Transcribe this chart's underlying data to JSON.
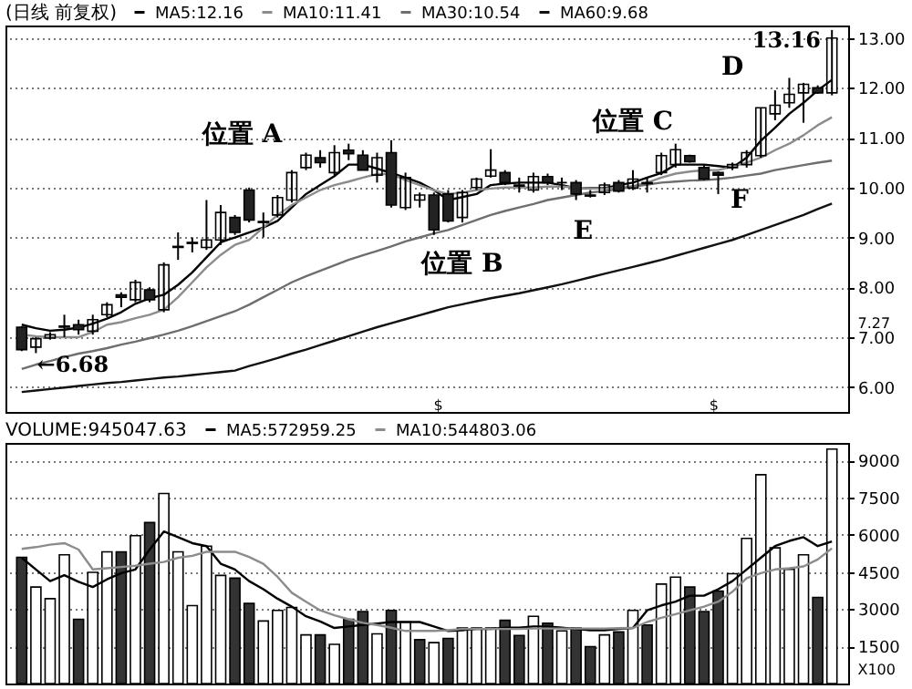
{
  "chart_data": [
    {
      "type": "candlestick",
      "title": "(日线 前复权)",
      "legend": "top left",
      "grid": "y",
      "categories": [
        null,
        null,
        null,
        null,
        null,
        null,
        null,
        null,
        null,
        null,
        null,
        null,
        null,
        null,
        null,
        null,
        null,
        null,
        null,
        null,
        null,
        null,
        null,
        null,
        null,
        null,
        null,
        null,
        null,
        null,
        null,
        null,
        null,
        null,
        null,
        null,
        null,
        null,
        null,
        null,
        null,
        null,
        null,
        null,
        null,
        null,
        null,
        null,
        null,
        null,
        null,
        null,
        null,
        null,
        null,
        null,
        null,
        null
      ],
      "ohlc": [
        [
          7.2,
          7.22,
          6.72,
          6.75
        ],
        [
          6.8,
          7.0,
          6.68,
          6.97
        ],
        [
          6.98,
          7.1,
          6.95,
          7.05
        ],
        [
          7.2,
          7.45,
          7.0,
          7.22
        ],
        [
          7.25,
          7.35,
          7.05,
          7.15
        ],
        [
          7.12,
          7.45,
          7.05,
          7.35
        ],
        [
          7.45,
          7.7,
          7.4,
          7.65
        ],
        [
          7.85,
          7.9,
          7.6,
          7.8
        ],
        [
          7.75,
          8.15,
          7.7,
          8.1
        ],
        [
          7.95,
          8.0,
          7.7,
          7.75
        ],
        [
          7.55,
          8.5,
          7.5,
          8.45
        ],
        [
          8.8,
          9.1,
          8.55,
          8.82
        ],
        [
          8.9,
          9.0,
          8.7,
          8.88
        ],
        [
          8.8,
          9.75,
          8.75,
          8.95
        ],
        [
          8.95,
          9.65,
          8.85,
          9.5
        ],
        [
          9.4,
          9.45,
          9.05,
          9.1
        ],
        [
          9.95,
          10.0,
          9.3,
          9.35
        ],
        [
          9.3,
          9.5,
          9.0,
          9.32
        ],
        [
          9.45,
          9.85,
          9.4,
          9.8
        ],
        [
          9.75,
          10.35,
          9.7,
          10.3
        ],
        [
          10.4,
          10.7,
          10.35,
          10.65
        ],
        [
          10.6,
          10.75,
          10.4,
          10.5
        ],
        [
          10.3,
          10.85,
          10.25,
          10.7
        ],
        [
          10.75,
          10.88,
          10.55,
          10.68
        ],
        [
          10.65,
          10.75,
          10.35,
          10.35
        ],
        [
          10.25,
          10.7,
          10.1,
          10.6
        ],
        [
          10.7,
          10.95,
          9.6,
          9.65
        ],
        [
          9.6,
          10.3,
          9.55,
          10.2
        ],
        [
          9.75,
          9.9,
          9.6,
          9.85
        ],
        [
          9.85,
          9.9,
          9.05,
          9.15
        ],
        [
          9.87,
          9.95,
          9.3,
          9.33
        ],
        [
          9.4,
          9.95,
          9.3,
          9.9
        ],
        [
          10.0,
          10.2,
          9.95,
          10.17
        ],
        [
          10.23,
          10.77,
          10.2,
          10.35
        ],
        [
          10.3,
          10.35,
          10.05,
          10.1
        ],
        [
          10.05,
          10.2,
          9.9,
          10.03
        ],
        [
          9.95,
          10.3,
          9.9,
          10.22
        ],
        [
          10.22,
          10.28,
          10.05,
          10.1
        ],
        [
          10.1,
          10.2,
          9.95,
          10.1
        ],
        [
          10.1,
          10.15,
          9.75,
          9.87
        ],
        [
          9.85,
          9.95,
          9.8,
          9.83
        ],
        [
          9.9,
          10.1,
          9.85,
          10.05
        ],
        [
          10.1,
          10.15,
          9.9,
          9.93
        ],
        [
          9.99,
          10.35,
          9.95,
          10.17
        ],
        [
          10.1,
          10.2,
          9.9,
          10.08
        ],
        [
          10.3,
          10.7,
          10.25,
          10.64
        ],
        [
          10.46,
          10.88,
          10.4,
          10.76
        ],
        [
          10.64,
          10.66,
          10.5,
          10.52
        ],
        [
          10.4,
          10.45,
          10.15,
          10.17
        ],
        [
          10.3,
          10.32,
          9.87,
          10.25
        ],
        [
          10.4,
          10.5,
          10.35,
          10.46
        ],
        [
          10.46,
          10.75,
          10.4,
          10.7
        ],
        [
          10.64,
          11.6,
          10.6,
          11.6
        ],
        [
          11.48,
          11.95,
          11.35,
          11.65
        ],
        [
          11.7,
          12.2,
          11.6,
          11.87
        ],
        [
          11.9,
          12.1,
          11.3,
          12.07
        ],
        [
          12.0,
          12.05,
          11.88,
          11.9
        ],
        [
          11.9,
          13.16,
          11.85,
          13.0
        ]
      ],
      "series": [
        {
          "name": "MA5:12.16",
          "color": "#000000",
          "type": "line",
          "values": [
            7.25,
            7.18,
            7.13,
            7.15,
            7.19,
            7.27,
            7.37,
            7.5,
            7.67,
            7.78,
            7.85,
            8.05,
            8.3,
            8.6,
            8.9,
            9.0,
            9.1,
            9.2,
            9.33,
            9.6,
            9.87,
            10.05,
            10.23,
            10.46,
            10.46,
            10.38,
            10.29,
            10.2,
            10.1,
            9.95,
            9.75,
            9.81,
            9.87,
            10.05,
            10.08,
            10.1,
            10.1,
            10.1,
            10.05,
            9.99,
            9.99,
            9.99,
            10.05,
            10.1,
            10.2,
            10.29,
            10.46,
            10.46,
            10.46,
            10.43,
            10.4,
            10.6,
            10.94,
            11.2,
            11.48,
            11.7,
            11.95,
            12.16
          ]
        },
        {
          "name": "MA10:11.41",
          "color": "#8c8c8c",
          "type": "line",
          "values": [
            7.05,
            7.02,
            7.0,
            7.0,
            7.0,
            7.1,
            7.25,
            7.3,
            7.38,
            7.45,
            7.55,
            7.8,
            8.1,
            8.4,
            8.65,
            8.85,
            8.95,
            9.2,
            9.45,
            9.65,
            9.8,
            9.95,
            10.05,
            10.12,
            10.2,
            10.27,
            10.27,
            10.15,
            10.05,
            9.95,
            9.87,
            9.9,
            9.95,
            9.98,
            10.0,
            10.0,
            10.0,
            10.02,
            10.02,
            10.0,
            9.98,
            9.98,
            10.0,
            10.03,
            10.1,
            10.2,
            10.28,
            10.32,
            10.35,
            10.35,
            10.42,
            10.5,
            10.6,
            10.75,
            10.88,
            11.05,
            11.25,
            11.41
          ]
        },
        {
          "name": "MA30:10.54",
          "color": "#6e6e6e",
          "type": "line",
          "values": [
            6.36,
            6.45,
            6.52,
            6.6,
            6.67,
            6.72,
            6.78,
            6.85,
            6.91,
            6.98,
            7.05,
            7.13,
            7.22,
            7.32,
            7.42,
            7.52,
            7.65,
            7.8,
            7.95,
            8.1,
            8.22,
            8.33,
            8.44,
            8.55,
            8.64,
            8.73,
            8.82,
            8.92,
            9.0,
            9.08,
            9.15,
            9.25,
            9.35,
            9.45,
            9.53,
            9.6,
            9.67,
            9.75,
            9.8,
            9.85,
            9.9,
            9.93,
            9.97,
            10.02,
            10.06,
            10.1,
            10.12,
            10.14,
            10.15,
            10.17,
            10.2,
            10.24,
            10.28,
            10.35,
            10.4,
            10.45,
            10.5,
            10.54
          ]
        },
        {
          "name": "MA60:9.68",
          "color": "#111111",
          "type": "line",
          "values": [
            5.9,
            5.93,
            5.96,
            5.99,
            6.02,
            6.05,
            6.08,
            6.1,
            6.13,
            6.16,
            6.19,
            6.21,
            6.24,
            6.27,
            6.3,
            6.33,
            6.42,
            6.5,
            6.58,
            6.67,
            6.75,
            6.84,
            6.93,
            7.02,
            7.11,
            7.2,
            7.28,
            7.36,
            7.44,
            7.52,
            7.6,
            7.66,
            7.72,
            7.78,
            7.83,
            7.88,
            7.94,
            8.0,
            8.06,
            8.13,
            8.2,
            8.27,
            8.34,
            8.41,
            8.48,
            8.55,
            8.63,
            8.71,
            8.79,
            8.87,
            8.95,
            9.05,
            9.15,
            9.25,
            9.35,
            9.45,
            9.57,
            9.68
          ]
        }
      ],
      "ylim": [
        5.5,
        13.25
      ],
      "yticks": [
        {
          "value": 6,
          "label": "6.00"
        },
        {
          "value": 7,
          "label": "7.00"
        },
        {
          "value": 8,
          "label": "8.00"
        },
        {
          "value": 9,
          "label": "9.00"
        },
        {
          "value": 10,
          "label": "10.00"
        },
        {
          "value": 11,
          "label": "11.00"
        },
        {
          "value": 12,
          "label": "12.00"
        },
        {
          "value": 13,
          "label": "13.00"
        }
      ],
      "annotations": [
        "位置 A",
        "位置 B",
        "位置 C",
        "D",
        "E",
        "F",
        "13.16",
        "←6.68",
        "$",
        "$",
        "7.27"
      ]
    },
    {
      "type": "bar",
      "title": "VOLUME:945047.63",
      "legend": "top left",
      "grid": "y",
      "categories": [
        null,
        null,
        null,
        null,
        null,
        null,
        null,
        null,
        null,
        null,
        null,
        null,
        null,
        null,
        null,
        null,
        null,
        null,
        null,
        null,
        null,
        null,
        null,
        null,
        null,
        null,
        null,
        null,
        null,
        null,
        null,
        null,
        null,
        null,
        null,
        null,
        null,
        null,
        null,
        null,
        null,
        null,
        null,
        null,
        null,
        null,
        null,
        null,
        null,
        null,
        null,
        null,
        null,
        null,
        null,
        null,
        null,
        null
      ],
      "series": [
        {
          "type": "bar",
          "values": [
            5090,
            3890,
            3420,
            5190,
            2590,
            4480,
            5310,
            5310,
            5960,
            6490,
            7660,
            5310,
            3140,
            5540,
            4360,
            4250,
            3230,
            2520,
            2950,
            3070,
            1960,
            1960,
            1580,
            2590,
            2900,
            2000,
            2950,
            2480,
            1770,
            1650,
            1820,
            2240,
            2240,
            2240,
            2550,
            1940,
            2710,
            2430,
            2120,
            2240,
            1490,
            1960,
            2080,
            2950,
            2360,
            4010,
            4290,
            3890,
            2900,
            3730,
            4430,
            5850,
            8420,
            5470,
            4600,
            5190,
            3470,
            9450
          ],
          "colors": [
            "#333333",
            "#ffffff",
            "#ffffff",
            "#ffffff",
            "#333333",
            "#ffffff",
            "#ffffff",
            "#333333",
            "#ffffff",
            "#333333",
            "#ffffff",
            "#ffffff",
            "#ffffff",
            "#ffffff",
            "#ffffff",
            "#333333",
            "#333333",
            "#ffffff",
            "#ffffff",
            "#ffffff",
            "#ffffff",
            "#333333",
            "#ffffff",
            "#333333",
            "#333333",
            "#ffffff",
            "#333333",
            "#ffffff",
            "#333333",
            "#ffffff",
            "#333333",
            "#ffffff",
            "#ffffff",
            "#ffffff",
            "#333333",
            "#333333",
            "#ffffff",
            "#333333",
            "#ffffff",
            "#333333",
            "#333333",
            "#ffffff",
            "#333333",
            "#ffffff",
            "#333333",
            "#ffffff",
            "#ffffff",
            "#333333",
            "#333333",
            "#333333",
            "#ffffff",
            "#ffffff",
            "#ffffff",
            "#ffffff",
            "#ffffff",
            "#ffffff",
            "#333333",
            "#ffffff"
          ]
        },
        {
          "name": "MA5:572959.25",
          "color": "#000000",
          "type": "line",
          "values": [
            5070,
            4600,
            4130,
            4370,
            4100,
            3890,
            4200,
            4450,
            4600,
            5400,
            6130,
            5900,
            5660,
            5540,
            4830,
            4600,
            4130,
            3800,
            3420,
            3100,
            2710,
            2500,
            2240,
            2300,
            2360,
            2420,
            2480,
            2480,
            2480,
            2300,
            2120,
            2150,
            2200,
            2200,
            2250,
            2250,
            2300,
            2300,
            2250,
            2200,
            2150,
            2150,
            2200,
            2240,
            2950,
            3150,
            3300,
            3540,
            3540,
            3800,
            4130,
            4600,
            5070,
            5540,
            5750,
            5900,
            5540,
            5730
          ]
        },
        {
          "name": "MA10:544803.06",
          "color": "#8c8c8c",
          "type": "line",
          "values": [
            5430,
            5500,
            5600,
            5660,
            5400,
            4600,
            4650,
            4700,
            4750,
            4830,
            4900,
            5070,
            5150,
            5310,
            5310,
            5310,
            5100,
            4830,
            4300,
            3660,
            3300,
            2950,
            2750,
            2590,
            2450,
            2360,
            2250,
            2120,
            2120,
            2120,
            2150,
            2200,
            2200,
            2200,
            2200,
            2200,
            2220,
            2220,
            2220,
            2220,
            2220,
            2220,
            2230,
            2240,
            2480,
            2650,
            2800,
            2950,
            3100,
            3300,
            3700,
            4250,
            4450,
            4600,
            4650,
            4720,
            5000,
            5450
          ]
        }
      ],
      "ylim": [
        0,
        9700
      ],
      "yticks": [
        1500,
        3000,
        4500,
        6000,
        7500,
        9000
      ],
      "annotations": [
        "X100"
      ]
    }
  ]
}
